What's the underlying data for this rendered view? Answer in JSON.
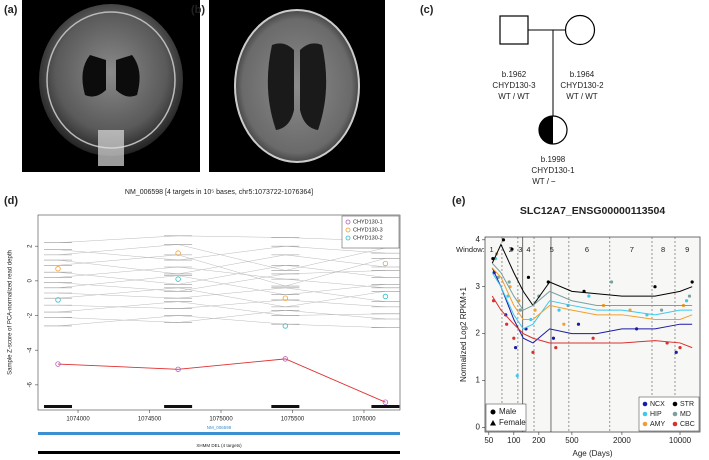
{
  "panels": [
    "(a)",
    "(b)",
    "(c)",
    "(d)",
    "(e)"
  ],
  "pedigree": {
    "father": {
      "birth": "b.1962",
      "id": "CHYD130-3",
      "genotype": "WT / WT"
    },
    "mother": {
      "birth": "b.1964",
      "id": "CHYD130-2",
      "genotype": "WT / WT"
    },
    "proband": {
      "birth": "b.1998",
      "id": "CHYD130-1",
      "genotype": "WT /",
      "deletion": "–"
    }
  },
  "chart_data": [
    {
      "type": "cnv",
      "title": "NM_006598 [4 targets in 10⁵ bases, chr5:1073722-1076364]",
      "ylabel": "Sample Z-score of PCA-normalized read depth",
      "xlim": [
        1073720,
        1076252
      ],
      "xticks": [
        1074000,
        1074500,
        1075000,
        1075500,
        1076000
      ],
      "ylim": [
        -7.45,
        3.8
      ],
      "yticks": [
        -6,
        -4,
        -2,
        0,
        2
      ],
      "targets": [
        1073860,
        1074700,
        1075450,
        1076150
      ],
      "series": [
        {
          "name": "CHYD130-1",
          "color": "#b060c0",
          "line_color": "#e03030",
          "values": [
            -4.8,
            -5.1,
            -4.5,
            -7.0
          ]
        },
        {
          "name": "CHYD130-3",
          "color": "#f0a030",
          "values": [
            0.7,
            1.6,
            -1.0,
            1.0
          ]
        },
        {
          "name": "CHYD130-2",
          "color": "#30c0c0",
          "values": [
            -1.1,
            0.1,
            -2.6,
            -0.9
          ]
        }
      ],
      "reference_color": "#bbbbbb",
      "reference": [
        [
          2.2,
          2.6,
          2.5,
          2.3
        ],
        [
          1.8,
          1.2,
          2.0,
          1.6
        ],
        [
          1.5,
          2.1,
          0.6,
          1.9
        ],
        [
          1.2,
          0.4,
          1.5,
          0.8
        ],
        [
          0.9,
          1.5,
          -0.3,
          1.3
        ],
        [
          0.5,
          -0.2,
          0.9,
          0.2
        ],
        [
          0.2,
          0.8,
          0.1,
          -0.4
        ],
        [
          -0.1,
          -0.6,
          0.4,
          0.6
        ],
        [
          -0.4,
          0.3,
          -0.8,
          -0.2
        ],
        [
          -0.7,
          -1.0,
          -0.4,
          -1.2
        ],
        [
          -1.0,
          -0.4,
          -1.5,
          -0.6
        ],
        [
          -1.4,
          -1.6,
          -1.1,
          -1.5
        ],
        [
          -1.8,
          -1.2,
          -2.0,
          -1.9
        ],
        [
          -2.1,
          -2.4,
          -1.7,
          -2.2
        ],
        [
          -2.6,
          -2.0,
          -2.5,
          -2.7
        ]
      ],
      "legend": "top-right",
      "gene_track": "NM_006598",
      "gene_color": "#3a90d0",
      "call_track": "XHMM DEL (4 targets)"
    },
    {
      "type": "line",
      "title": "SLC12A7_ENSG00000113504",
      "xlabel": "Age (Days)",
      "ylabel": "Normalized Log2 RPKM+1",
      "log_x": true,
      "xlim": [
        45,
        17400
      ],
      "xticks": [
        50,
        100,
        200,
        500,
        2000,
        10000
      ],
      "ylim": [
        -0.1,
        4.06
      ],
      "yticks": [
        0,
        1,
        2,
        3,
        4
      ],
      "window_label": "Window:",
      "windows": [
        {
          "value": 54,
          "label": "1"
        },
        {
          "value": 92,
          "label": "2"
        },
        {
          "value": 120,
          "label": "3"
        },
        {
          "value": 150,
          "label": "4"
        },
        {
          "value": 286,
          "label": "5"
        },
        {
          "value": 758,
          "label": "6"
        },
        {
          "value": 2630,
          "label": "7"
        },
        {
          "value": 6250,
          "label": "8"
        },
        {
          "value": 12200,
          "label": "9"
        }
      ],
      "solid_lines": [
        128,
        280
      ],
      "dashed_lines": [
        72,
        112,
        175,
        460,
        1430,
        4600,
        8700
      ],
      "x": [
        55,
        70,
        100,
        130,
        170,
        270,
        500,
        1000,
        2000,
        5000,
        10000,
        14000
      ],
      "series": [
        {
          "name": "NCX",
          "color": "#1a1aa8",
          "values": [
            3.4,
            3.0,
            2.3,
            1.9,
            1.8,
            2.1,
            2.0,
            2.0,
            2.1,
            2.1,
            2.2,
            2.2
          ],
          "points": {
            "x": [
              58,
              80,
              105,
              140,
              300,
              600,
              3000,
              9000
            ],
            "y": [
              3.3,
              2.4,
              1.7,
              2.1,
              1.9,
              2.2,
              2.1,
              1.6
            ]
          }
        },
        {
          "name": "HIP",
          "color": "#3dc8f0",
          "values": [
            3.3,
            3.0,
            2.4,
            2.1,
            2.2,
            2.7,
            2.6,
            2.5,
            2.5,
            2.4,
            2.5,
            2.5
          ],
          "points": {
            "x": [
              60,
              85,
              110,
              160,
              350,
              800,
              4000,
              12000
            ],
            "y": [
              3.6,
              2.8,
              1.1,
              2.3,
              2.5,
              2.8,
              2.4,
              2.7
            ]
          }
        },
        {
          "name": "AMY",
          "color": "#f0a030",
          "values": [
            3.4,
            3.2,
            2.6,
            2.3,
            2.3,
            2.6,
            2.5,
            2.4,
            2.4,
            2.3,
            2.3,
            2.4
          ],
          "points": {
            "x": [
              62,
              90,
              115,
              180,
              400,
              1200,
              2500,
              11000
            ],
            "y": [
              3.7,
              3.0,
              2.7,
              2.5,
              2.2,
              2.6,
              2.5,
              2.6
            ]
          }
        },
        {
          "name": "STR",
          "color": "#000000",
          "values": [
            3.5,
            3.9,
            3.3,
            2.9,
            2.6,
            3.1,
            2.9,
            2.85,
            2.8,
            2.8,
            2.9,
            3.0
          ],
          "points": {
            "x": [
              56,
              75,
              95,
              150,
              260,
              700,
              5000,
              14000
            ],
            "y": [
              3.6,
              4.0,
              3.8,
              3.2,
              3.1,
              2.9,
              3.0,
              3.1
            ]
          }
        },
        {
          "name": "MD",
          "color": "#7aa0a0",
          "values": [
            3.5,
            3.3,
            2.8,
            2.5,
            2.6,
            2.9,
            2.7,
            2.6,
            2.6,
            2.6,
            2.6,
            2.6
          ],
          "points": {
            "x": [
              65,
              88,
              120,
              200,
              450,
              1500,
              6000,
              13000
            ],
            "y": [
              3.2,
              3.1,
              2.5,
              2.8,
              2.6,
              3.1,
              2.5,
              2.8
            ]
          }
        },
        {
          "name": "CBC",
          "color": "#d83030",
          "values": [
            2.8,
            2.5,
            2.2,
            2.0,
            1.9,
            1.8,
            1.8,
            1.8,
            1.8,
            1.85,
            1.8,
            1.7
          ],
          "points": {
            "x": [
              57,
              82,
              100,
              170,
              320,
              900,
              7000,
              10000
            ],
            "y": [
              2.7,
              2.2,
              1.9,
              1.6,
              1.7,
              1.9,
              1.8,
              1.7
            ]
          }
        }
      ],
      "shape_legend": [
        {
          "name": "Male",
          "shape": "circle"
        },
        {
          "name": "Female",
          "shape": "triangle"
        }
      ],
      "legend": "bottom-right"
    }
  ]
}
